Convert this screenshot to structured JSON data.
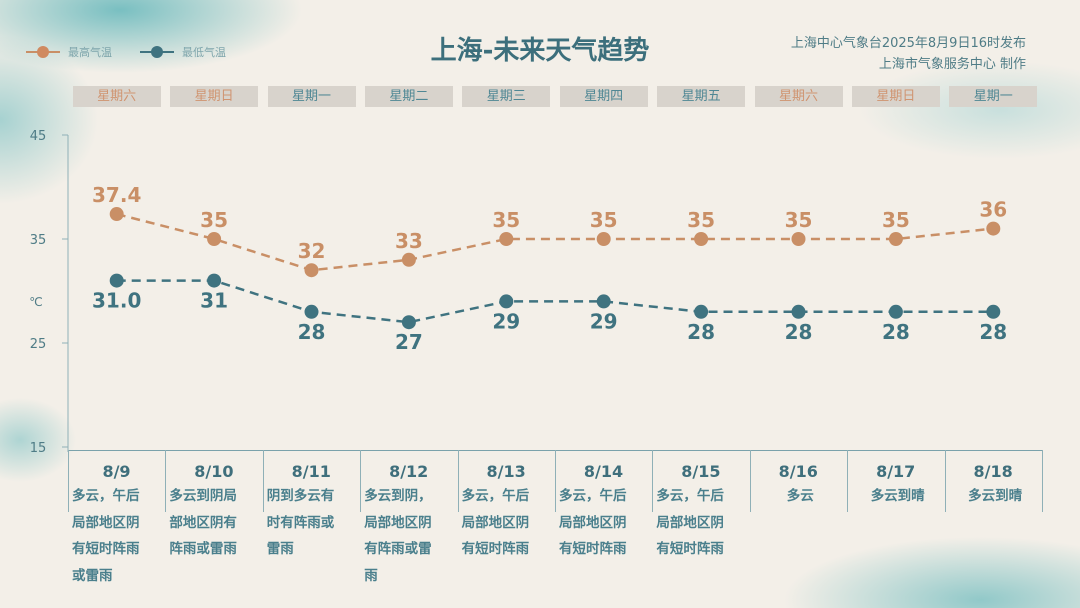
{
  "header": {
    "title": "上海-未来天气趋势",
    "issuer_line1": "上海中心气象台2025年8月9日16时发布",
    "issuer_line2": "上海市气象服务中心 制作"
  },
  "colors": {
    "high": "#c98f66",
    "low": "#3f7380",
    "weekend": "#d09470",
    "weekday": "#4f8794"
  },
  "chart_data": {
    "type": "line",
    "title": "上海-未来天气趋势",
    "ylabel": "℃",
    "ylim": [
      15,
      45
    ],
    "yticks": [
      "45",
      "35",
      "25",
      "15"
    ],
    "categories": [
      "8/9",
      "8/10",
      "8/11",
      "8/12",
      "8/13",
      "8/14",
      "8/15",
      "8/16",
      "8/17",
      "8/18"
    ],
    "weekdays": [
      "星期六",
      "星期日",
      "星期一",
      "星期二",
      "星期三",
      "星期四",
      "星期五",
      "星期六",
      "星期日",
      "星期一"
    ],
    "weekend": [
      true,
      true,
      false,
      false,
      false,
      false,
      false,
      true,
      true,
      false
    ],
    "weather": [
      "多云，午后\n局部地区阴\n有短时阵雨\n或雷雨",
      "多云到阴局\n部地区阴有\n阵雨或雷雨",
      "阴到多云有\n时有阵雨或\n雷雨",
      "多云到阴，\n局部地区阴\n有阵雨或雷\n雨",
      "多云，午后\n局部地区阴\n有短时阵雨",
      "多云，午后\n局部地区阴\n有短时阵雨",
      "多云，午后\n局部地区阴\n有短时阵雨",
      "多云",
      "多云到晴",
      "多云到晴"
    ],
    "series": [
      {
        "name": "最高气温",
        "values": [
          37.4,
          35,
          32,
          33,
          35,
          35,
          35,
          35,
          35,
          36
        ],
        "labels": [
          "37.4",
          "35",
          "32",
          "33",
          "35",
          "35",
          "35",
          "35",
          "35",
          "36"
        ]
      },
      {
        "name": "最低气温",
        "values": [
          31.0,
          31,
          28,
          27,
          29,
          29,
          28,
          28,
          28,
          28
        ],
        "labels": [
          "31.0",
          "31",
          "28",
          "27",
          "29",
          "29",
          "28",
          "28",
          "28",
          "28"
        ]
      }
    ],
    "legend": "top-left",
    "grid": false
  }
}
